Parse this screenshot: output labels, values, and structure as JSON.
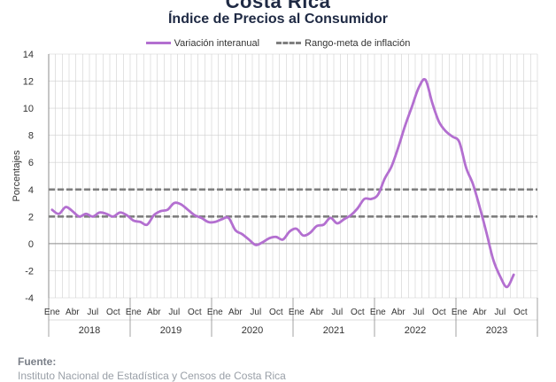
{
  "header": {
    "top_title": "Costa Rica",
    "title": "Índice de Precios al Consumidor"
  },
  "legend": {
    "series_label": "Variación interanual",
    "band_label": "Rango-meta de inflación"
  },
  "source": {
    "label": "Fuente:",
    "text": "Instituto Nacional de Estadística y Censos de Costa Rica"
  },
  "colors": {
    "series": "#b36fd0",
    "band": "#7f7f7f",
    "grid": "#d0d0d0",
    "axis": "#8c8c8c"
  },
  "chart_data": {
    "type": "line",
    "title": "Índice de Precios al Consumidor",
    "xlabel": "",
    "ylabel": "Porcentajes",
    "ylim": [
      -4,
      14
    ],
    "yticks": [
      14,
      12,
      10,
      8,
      6,
      4,
      2,
      0,
      -2,
      -4
    ],
    "grid": true,
    "legend_position": "top",
    "month_tick_labels": [
      "Ene",
      "Abr",
      "Jul",
      "Oct"
    ],
    "years": [
      "2018",
      "2019",
      "2020",
      "2021",
      "2022",
      "2023"
    ],
    "x_start": "2018-01",
    "series": [
      {
        "name": "Variación interanual",
        "values": [
          2.5,
          2.2,
          2.7,
          2.4,
          2.0,
          2.2,
          2.0,
          2.3,
          2.2,
          2.0,
          2.3,
          2.1,
          1.7,
          1.6,
          1.4,
          2.1,
          2.4,
          2.5,
          3.0,
          2.9,
          2.5,
          2.1,
          1.9,
          1.6,
          1.6,
          1.8,
          1.9,
          1.0,
          0.7,
          0.3,
          -0.1,
          0.1,
          0.4,
          0.5,
          0.3,
          0.9,
          1.1,
          0.6,
          0.8,
          1.3,
          1.4,
          1.9,
          1.5,
          1.8,
          2.1,
          2.6,
          3.3,
          3.3,
          3.6,
          4.8,
          5.7,
          7.1,
          8.7,
          10.1,
          11.5,
          12.1,
          10.4,
          9.0,
          8.3,
          7.9,
          7.5,
          5.6,
          4.4,
          2.7,
          0.8,
          -1.2,
          -2.4,
          -3.2,
          -2.3
        ]
      },
      {
        "name": "Rango-meta de inflación",
        "upper": 4,
        "lower": 2
      }
    ]
  }
}
